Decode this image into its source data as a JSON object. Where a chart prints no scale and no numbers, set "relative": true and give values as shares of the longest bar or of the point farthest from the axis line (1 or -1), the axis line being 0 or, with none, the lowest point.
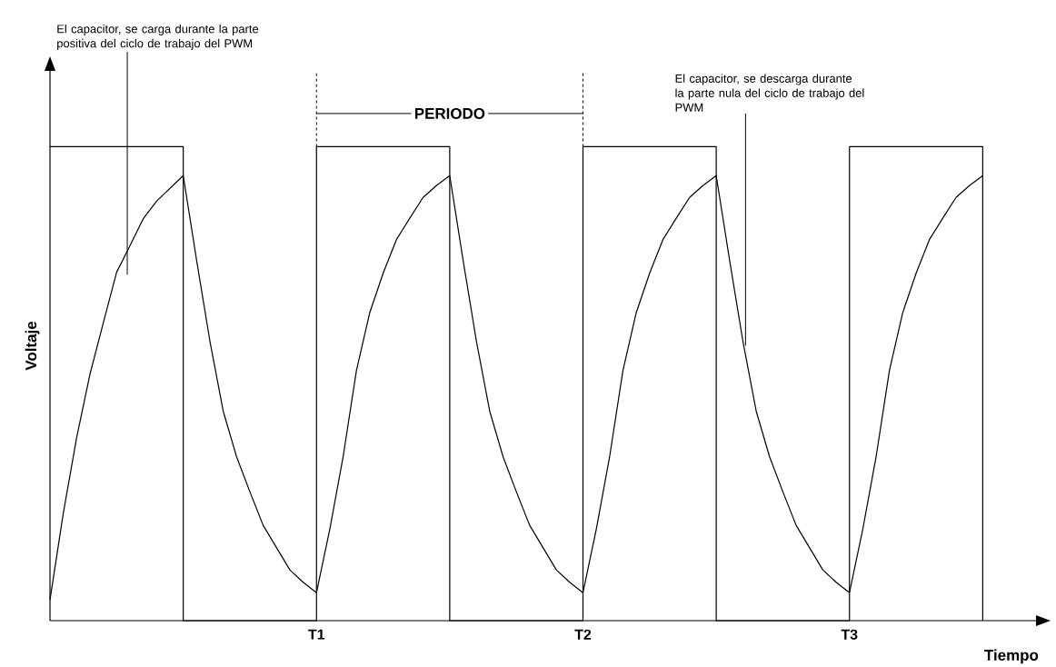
{
  "chart_data": {
    "type": "line",
    "relative": true,
    "xlabel": "Tiempo",
    "ylabel": "Voltaje",
    "categories": [
      null,
      null,
      null,
      null,
      null,
      null,
      null,
      null,
      null,
      null,
      null,
      null,
      null,
      null,
      null,
      null,
      null,
      null,
      null,
      null,
      "T1",
      null,
      null,
      null,
      null,
      null,
      null,
      null,
      null,
      null,
      null,
      null,
      null,
      null,
      null,
      null,
      null,
      null,
      null,
      null,
      "T2",
      null,
      null,
      null,
      null,
      null,
      null,
      null,
      null,
      null,
      null,
      null,
      null,
      null,
      null,
      null,
      null,
      null,
      null,
      null,
      "T3",
      null,
      null,
      null,
      null,
      null,
      null,
      null,
      null,
      null,
      null
    ],
    "marker": "none",
    "line_style": "solid",
    "annotations": [
      "El capacitor, se carga durante la parte positiva del ciclo de trabajo  del PWM",
      "PERIODO",
      "El capacitor, se descarga durante la parte nula del ciclo de trabajo  del PWM"
    ],
    "series": [
      {
        "color": "#000000",
        "type": "step",
        "values": [
          1,
          1,
          1,
          1,
          1,
          1,
          1,
          1,
          1,
          1,
          0,
          0,
          0,
          0,
          0,
          0,
          0,
          0,
          0,
          0,
          1,
          1,
          1,
          1,
          1,
          1,
          1,
          1,
          1,
          1,
          0,
          0,
          0,
          0,
          0,
          0,
          0,
          0,
          0,
          0,
          1,
          1,
          1,
          1,
          1,
          1,
          1,
          1,
          1,
          1,
          0,
          0,
          0,
          0,
          0,
          0,
          0,
          0,
          0,
          0,
          1,
          1,
          1,
          1,
          1,
          1,
          1,
          1,
          1,
          1,
          0
        ]
      },
      {
        "color": "#000000",
        "values": [
          0.044,
          0.227,
          0.386,
          0.52,
          0.628,
          0.735,
          0.791,
          0.848,
          0.885,
          0.912,
          0.939,
          0.761,
          0.59,
          0.442,
          0.346,
          0.272,
          0.201,
          0.154,
          0.107,
          0.081,
          0.059,
          0.193,
          0.346,
          0.528,
          0.65,
          0.733,
          0.804,
          0.849,
          0.893,
          0.918,
          0.939,
          0.761,
          0.59,
          0.442,
          0.346,
          0.272,
          0.201,
          0.154,
          0.107,
          0.081,
          0.059,
          0.193,
          0.346,
          0.528,
          0.65,
          0.733,
          0.804,
          0.849,
          0.893,
          0.918,
          0.939,
          0.761,
          0.59,
          0.442,
          0.346,
          0.272,
          0.201,
          0.154,
          0.107,
          0.081,
          0.059,
          0.193,
          0.346,
          0.528,
          0.65,
          0.733,
          0.804,
          0.849,
          0.893,
          0.918,
          0.939
        ]
      }
    ]
  }
}
